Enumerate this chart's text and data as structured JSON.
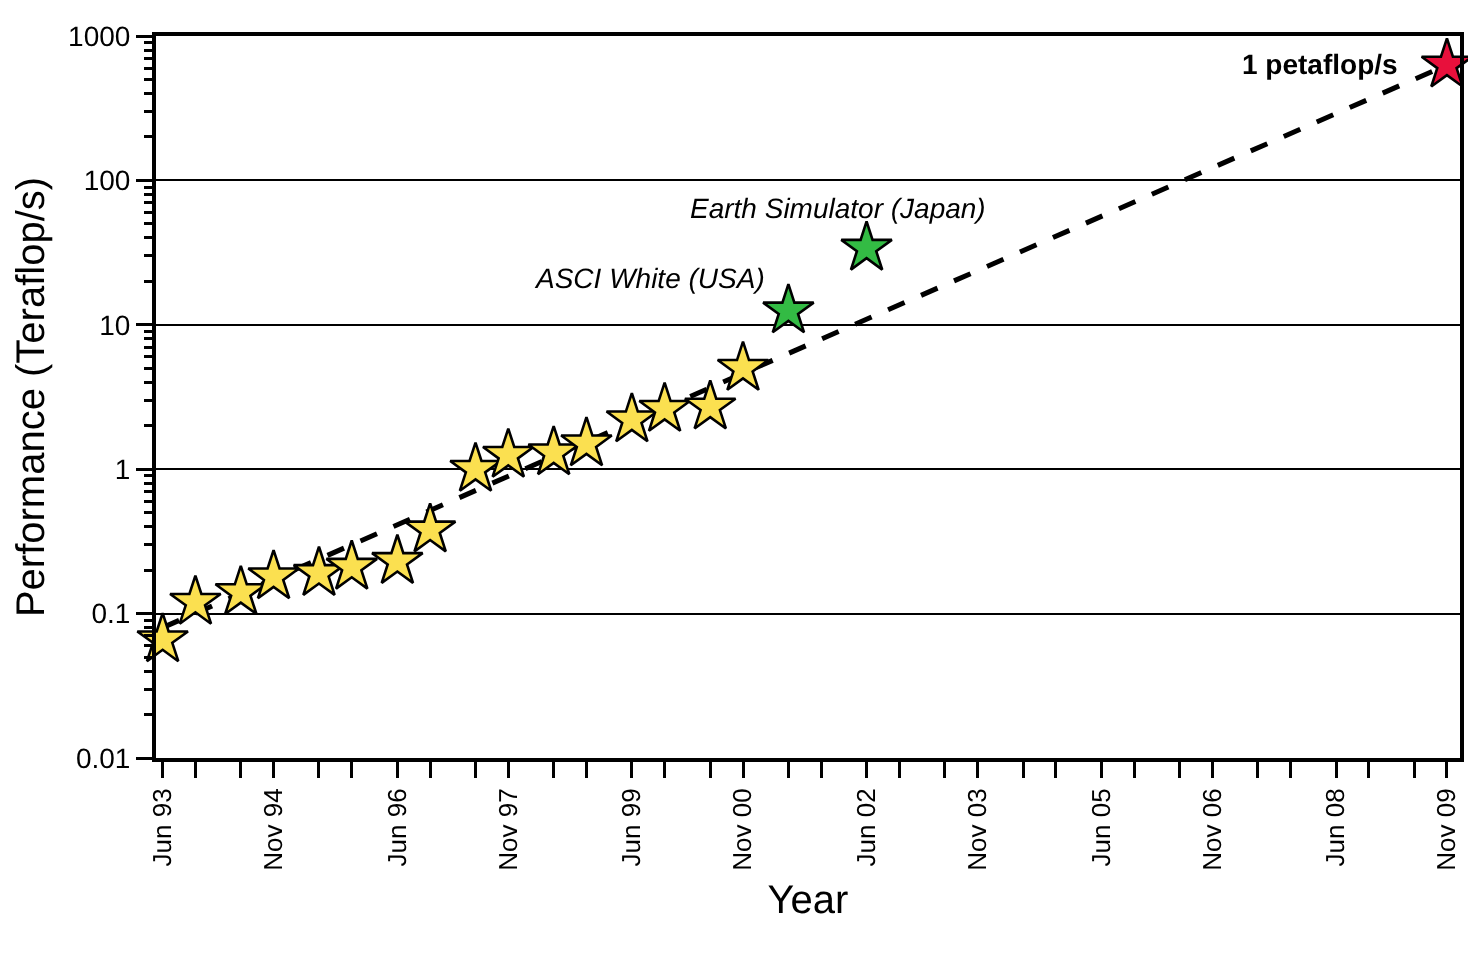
{
  "chart_data": {
    "type": "scatter",
    "xlabel": "Year",
    "ylabel": "Performance (Teraflop/s)",
    "log": "y",
    "grid": "y",
    "marker": "star",
    "xlim": [
      "1993-05-01",
      "2010-01-01"
    ],
    "xticks": [
      {
        "value": "1993-06",
        "label": "Jun 93"
      },
      {
        "value": "1993-11",
        "label": null
      },
      {
        "value": "1994-06",
        "label": null
      },
      {
        "value": "1994-11",
        "label": "Nov 94"
      },
      {
        "value": "1995-06",
        "label": null
      },
      {
        "value": "1995-11",
        "label": null
      },
      {
        "value": "1996-06",
        "label": "Jun 96"
      },
      {
        "value": "1996-11",
        "label": null
      },
      {
        "value": "1997-06",
        "label": null
      },
      {
        "value": "1997-11",
        "label": "Nov 97"
      },
      {
        "value": "1998-06",
        "label": null
      },
      {
        "value": "1998-11",
        "label": null
      },
      {
        "value": "1999-06",
        "label": "Jun 99"
      },
      {
        "value": "1999-11",
        "label": null
      },
      {
        "value": "2000-06",
        "label": null
      },
      {
        "value": "2000-11",
        "label": "Nov 00"
      },
      {
        "value": "2001-06",
        "label": null
      },
      {
        "value": "2001-11",
        "label": null
      },
      {
        "value": "2002-06",
        "label": "Jun 02"
      },
      {
        "value": "2002-11",
        "label": null
      },
      {
        "value": "2003-06",
        "label": null
      },
      {
        "value": "2003-11",
        "label": "Nov 03"
      },
      {
        "value": "2004-06",
        "label": null
      },
      {
        "value": "2004-11",
        "label": null
      },
      {
        "value": "2005-06",
        "label": "Jun 05"
      },
      {
        "value": "2005-11",
        "label": null
      },
      {
        "value": "2006-06",
        "label": null
      },
      {
        "value": "2006-11",
        "label": "Nov 06"
      },
      {
        "value": "2007-06",
        "label": null
      },
      {
        "value": "2007-11",
        "label": null
      },
      {
        "value": "2008-06",
        "label": "Jun 08"
      },
      {
        "value": "2008-11",
        "label": null
      },
      {
        "value": "2009-06",
        "label": null
      },
      {
        "value": "2009-11",
        "label": "Nov 09"
      }
    ],
    "ylim": [
      0.01,
      1000
    ],
    "yticks": [
      0.01,
      0.1,
      1,
      10,
      100,
      1000
    ],
    "series": [
      {
        "type": "line",
        "marker": "none",
        "line_style": "dashed",
        "color": "#000000",
        "x": [
          "1993-06",
          "2009-11"
        ],
        "values": [
          0.08,
          630
        ]
      },
      {
        "color": "#fbe050",
        "x": [
          "1993-06",
          "1993-11",
          "1994-06",
          "1994-11",
          "1995-06",
          "1995-11",
          "1996-06",
          "1996-11",
          "1997-06",
          "1997-11",
          "1998-06",
          "1998-11",
          "1999-06",
          "1999-11",
          "2000-06",
          "2000-11"
        ],
        "values": [
          0.066,
          0.12,
          0.14,
          0.18,
          0.19,
          0.21,
          0.23,
          0.38,
          1.0,
          1.25,
          1.3,
          1.5,
          2.2,
          2.6,
          2.7,
          5.0
        ]
      },
      {
        "color": "#33bb44",
        "x": [
          "2001-06",
          "2002-06"
        ],
        "values": [
          12.5,
          34
        ]
      },
      {
        "color": "#e8103c",
        "x": [
          "2009-11"
        ],
        "values": [
          630
        ]
      }
    ],
    "annotations": [
      {
        "text": "ASCI White (USA)",
        "x": "2001-06",
        "y": 12.5
      },
      {
        "text": "Earth Simulator (Japan)",
        "x": "2002-06",
        "y": 34
      },
      {
        "text": "1 petaflop/s",
        "x": "2009-11",
        "y": 630
      }
    ]
  }
}
